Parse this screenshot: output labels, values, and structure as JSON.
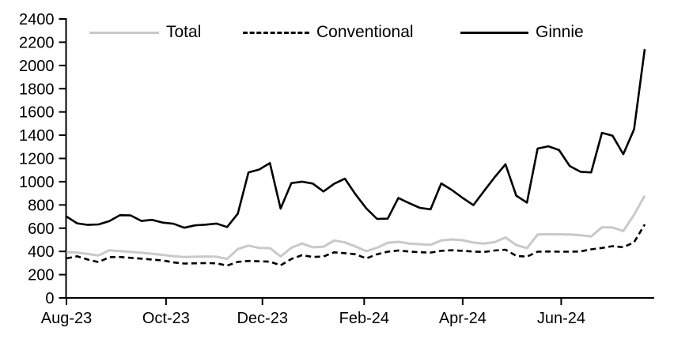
{
  "chart_data": {
    "type": "line",
    "title": "",
    "legend": {
      "position": "top",
      "entries": [
        "Total",
        "Conventional",
        "Ginnie"
      ]
    },
    "x_axis": {
      "label": "",
      "tick_labels": [
        "Aug-23",
        "Oct-23",
        "Dec-23",
        "Feb-24",
        "Apr-24",
        "Jun-24"
      ],
      "tick_positions": [
        0,
        9.3,
        18.3,
        27.8,
        37.0,
        46.2
      ],
      "n_points": 55,
      "frequency": "weekly"
    },
    "y_axis": {
      "label": "",
      "min": 0,
      "max": 2400,
      "step": 200,
      "tick_labels": [
        "0",
        "200",
        "400",
        "600",
        "800",
        "1000",
        "1200",
        "1400",
        "1600",
        "1800",
        "2000",
        "2200",
        "2400"
      ]
    },
    "grid": "off",
    "series": [
      {
        "name": "Total",
        "color": "#c9c9c9",
        "style": "solid",
        "values": [
          395,
          390,
          378,
          365,
          410,
          403,
          396,
          388,
          380,
          370,
          358,
          352,
          354,
          356,
          354,
          335,
          420,
          450,
          430,
          428,
          356,
          432,
          468,
          436,
          440,
          494,
          478,
          442,
          402,
          432,
          474,
          483,
          468,
          462,
          457,
          494,
          503,
          496,
          476,
          468,
          480,
          520,
          455,
          428,
          545,
          548,
          547,
          545,
          540,
          528,
          608,
          606,
          576,
          715,
          880
        ]
      },
      {
        "name": "Conventional",
        "color": "#000000",
        "style": "dashed",
        "values": [
          340,
          358,
          330,
          308,
          350,
          352,
          345,
          338,
          330,
          322,
          305,
          296,
          298,
          300,
          298,
          278,
          310,
          318,
          315,
          312,
          280,
          335,
          368,
          352,
          356,
          392,
          385,
          375,
          340,
          375,
          398,
          408,
          399,
          393,
          390,
          405,
          410,
          405,
          399,
          395,
          408,
          415,
          362,
          355,
          398,
          400,
          398,
          398,
          400,
          418,
          430,
          445,
          436,
          478,
          632
        ]
      },
      {
        "name": "Ginnie",
        "color": "#000000",
        "style": "solid",
        "values": [
          700,
          642,
          628,
          632,
          660,
          712,
          710,
          662,
          672,
          648,
          638,
          604,
          624,
          630,
          640,
          610,
          725,
          1080,
          1105,
          1160,
          768,
          988,
          1000,
          984,
          916,
          982,
          1026,
          890,
          770,
          680,
          682,
          860,
          815,
          775,
          762,
          985,
          928,
          860,
          798,
          920,
          1040,
          1150,
          880,
          820,
          1285,
          1305,
          1272,
          1135,
          1085,
          1080,
          1420,
          1395,
          1237,
          1450,
          2140
        ]
      }
    ]
  }
}
